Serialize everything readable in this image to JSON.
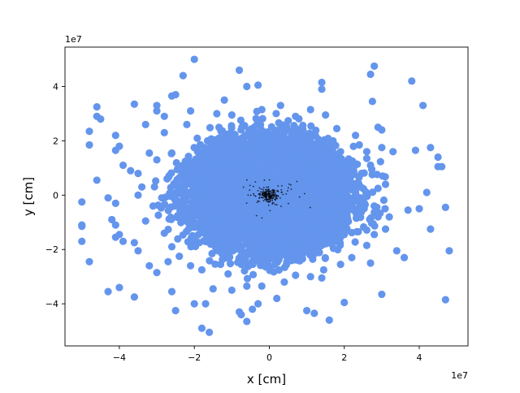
{
  "chart_data": {
    "type": "scatter",
    "title": "",
    "xlabel": "x [cm]",
    "ylabel": "y [cm]",
    "xlim": [
      -54500000.0,
      53000000.0
    ],
    "ylim": [
      -55500000.0,
      54500000.0
    ],
    "x_ticks": [
      -40000000.0,
      -20000000.0,
      0,
      20000000.0,
      40000000.0
    ],
    "y_ticks": [
      -40000000.0,
      -20000000.0,
      0,
      20000000.0,
      40000000.0
    ],
    "x_tick_labels": [
      "−4",
      "−2",
      "0",
      "2",
      "4"
    ],
    "y_tick_labels": [
      "−4",
      "−2",
      "0",
      "2",
      "4"
    ],
    "x_offset_label": "1e7",
    "y_offset_label": "1e7",
    "grid": false,
    "series": [
      {
        "marker": "circle-large",
        "color": "#6495ed",
        "points": [
          [
            -20000000.0,
            50000000.0
          ],
          [
            -8000000.0,
            46000000.0
          ],
          [
            -6000000.0,
            40000000.0
          ],
          [
            -23000000.0,
            44000000.0
          ],
          [
            -25000000.0,
            37000000.0
          ],
          [
            -26000000.0,
            36500000.0
          ],
          [
            -12000000.0,
            35000000.0
          ],
          [
            14000000.0,
            41500000.0
          ],
          [
            14000000.0,
            39000000.0
          ],
          [
            28000000.0,
            47500000.0
          ],
          [
            27000000.0,
            44500000.0
          ],
          [
            27500000.0,
            34500000.0
          ],
          [
            38000000.0,
            42000000.0
          ],
          [
            41000000.0,
            33000000.0
          ],
          [
            -3000000.0,
            40500000.0
          ],
          [
            -46000000.0,
            32500000.0
          ],
          [
            -46000000.0,
            29000000.0
          ],
          [
            -45000000.0,
            28000000.0
          ],
          [
            -36000000.0,
            33500000.0
          ],
          [
            -30000000.0,
            33000000.0
          ],
          [
            -48000000.0,
            23500000.0
          ],
          [
            -48000000.0,
            18500000.0
          ],
          [
            -41000000.0,
            16500000.0
          ],
          [
            -40000000.0,
            18000000.0
          ],
          [
            -41000000.0,
            22000000.0
          ],
          [
            -33000000.0,
            26000000.0
          ],
          [
            -30000000.0,
            31000000.0
          ],
          [
            -28000000.0,
            29000000.0
          ],
          [
            -39000000.0,
            11000000.0
          ],
          [
            -37000000.0,
            9000000.0
          ],
          [
            -46000000.0,
            5500000.0
          ],
          [
            -35000000.0,
            8000000.0
          ],
          [
            -34000000.0,
            3000000.0
          ],
          [
            -43000000.0,
            -1000000.0
          ],
          [
            -41000000.0,
            -3000000.0
          ],
          [
            -42000000.0,
            -9000000.0
          ],
          [
            -41000000.0,
            -11000000.0
          ],
          [
            -41000000.0,
            -15500000.0
          ],
          [
            -40000000.0,
            -14500000.0
          ],
          [
            -39000000.0,
            -17000000.0
          ],
          [
            -36000000.0,
            -17500000.0
          ],
          [
            -35000000.0,
            -20500000.0
          ],
          [
            -32000000.0,
            -26000000.0
          ],
          [
            -30000000.0,
            -28500000.0
          ],
          [
            -27000000.0,
            -24500000.0
          ],
          [
            -48000000.0,
            -24500000.0
          ],
          [
            -50000000.0,
            -17000000.0
          ],
          [
            -50000000.0,
            -11500000.0
          ],
          [
            -50000000.0,
            -11000000.0
          ],
          [
            -50000000.0,
            -2500000.0
          ],
          [
            -43000000.0,
            -35500000.0
          ],
          [
            -40000000.0,
            -34000000.0
          ],
          [
            -36000000.0,
            -37500000.0
          ],
          [
            -26000000.0,
            -35500000.0
          ],
          [
            -25000000.0,
            -42500000.0
          ],
          [
            -20000000.0,
            -40000000.0
          ],
          [
            -17000000.0,
            -40000000.0
          ],
          [
            -18000000.0,
            -49000000.0
          ],
          [
            -16000000.0,
            -50500000.0
          ],
          [
            -15000000.0,
            -34500000.0
          ],
          [
            -8000000.0,
            -43000000.0
          ],
          [
            -7500000.0,
            -44000000.0
          ],
          [
            -6000000.0,
            -46500000.0
          ],
          [
            -4500000.0,
            -42000000.0
          ],
          [
            -3000000.0,
            -40000000.0
          ],
          [
            2000000.0,
            -38000000.0
          ],
          [
            10000000.0,
            -42500000.0
          ],
          [
            12000000.0,
            -43500000.0
          ],
          [
            16000000.0,
            -46000000.0
          ],
          [
            20000000.0,
            -39500000.0
          ],
          [
            30000000.0,
            -36500000.0
          ],
          [
            47000000.0,
            -38500000.0
          ],
          [
            48000000.0,
            -20500000.0
          ],
          [
            36000000.0,
            -23000000.0
          ],
          [
            34000000.0,
            -20500000.0
          ],
          [
            27000000.0,
            -25000000.0
          ],
          [
            43000000.0,
            -12500000.0
          ],
          [
            37000000.0,
            -5500000.0
          ],
          [
            40000000.0,
            -5000000.0
          ],
          [
            47000000.0,
            -4500000.0
          ],
          [
            42000000.0,
            1000000.0
          ],
          [
            45000000.0,
            10500000.0
          ],
          [
            46000000.0,
            10500000.0
          ],
          [
            45000000.0,
            14000000.0
          ],
          [
            43000000.0,
            17500000.0
          ],
          [
            39000000.0,
            16500000.0
          ],
          [
            33000000.0,
            16000000.0
          ],
          [
            30000000.0,
            17500000.0
          ],
          [
            29000000.0,
            25000000.0
          ],
          [
            30000000.0,
            24000000.0
          ],
          [
            24000000.0,
            18500000.0
          ],
          [
            23000000.0,
            22000000.0
          ],
          [
            18000000.0,
            24500000.0
          ],
          [
            17000000.0,
            20000000.0
          ],
          [
            19000000.0,
            16000000.0
          ],
          [
            15000000.0,
            29500000.0
          ],
          [
            11000000.0,
            31500000.0
          ],
          [
            7000000.0,
            29000000.0
          ],
          [
            3000000.0,
            33000000.0
          ],
          [
            -2000000.0,
            31500000.0
          ],
          [
            -10000000.0,
            29500000.0
          ],
          [
            -14000000.0,
            30000000.0
          ],
          [
            -21000000.0,
            31000000.0
          ],
          [
            -22000000.0,
            26000000.0
          ],
          [
            -28000000.0,
            23000000.0
          ],
          [
            -32000000.0,
            15500000.0
          ],
          [
            -30000000.0,
            13000000.0
          ],
          [
            -26000000.0,
            15500000.0
          ],
          [
            -35000000.0,
            0.0
          ],
          [
            -31000000.0,
            -4000000.0
          ],
          [
            -33000000.0,
            -9500000.0
          ],
          [
            -28000000.0,
            -14000000.0
          ],
          [
            -26000000.0,
            -19000000.0
          ],
          [
            -24000000.0,
            -22500000.0
          ],
          [
            -21000000.0,
            -26000000.0
          ],
          [
            -18000000.0,
            -27500000.0
          ],
          [
            -13000000.0,
            -25500000.0
          ],
          [
            -11000000.0,
            -29000000.0
          ],
          [
            -6000000.0,
            -33500000.0
          ],
          [
            -2000000.0,
            -33500000.0
          ],
          [
            4000000.0,
            -32000000.0
          ],
          [
            7000000.0,
            -29500000.0
          ],
          [
            11000000.0,
            -30000000.0
          ],
          [
            14500000.0,
            -27500000.0
          ],
          [
            14000000.0,
            -30500000.0
          ],
          [
            19000000.0,
            -25500000.0
          ],
          [
            22000000.0,
            -23000000.0
          ],
          [
            26000000.0,
            -18500000.0
          ],
          [
            28000000.0,
            -14500000.0
          ],
          [
            31000000.0,
            -12500000.0
          ],
          [
            32000000.0,
            -8000000.0
          ],
          [
            29000000.0,
            -8000000.0
          ],
          [
            28000000.0,
            -4000000.0
          ],
          [
            29000000.0,
            2500000.0
          ],
          [
            31000000.0,
            4000000.0
          ],
          [
            27000000.0,
            11000000.0
          ],
          [
            26000000.0,
            13500000.0
          ],
          [
            23000000.0,
            11500000.0
          ],
          [
            26000000.0,
            16000000.0
          ],
          [
            -10000000.0,
            -35000000.0
          ]
        ]
      },
      {
        "marker": "cluster-dense",
        "color": "#6495ed",
        "clusters": [
          {
            "cx": 0.0,
            "cy": 0.0,
            "rx": 23000000.0,
            "ry": 23000000.0,
            "count": 2600,
            "seed": 11
          },
          {
            "cx": 0.0,
            "cy": 0.0,
            "rx": 29000000.0,
            "ry": 28000000.0,
            "count": 700,
            "seed": 23
          }
        ]
      },
      {
        "marker": "dot-small",
        "color": "#000000",
        "clusters": [
          {
            "cx": 0.0,
            "cy": 0.0,
            "rx": 2500000.0,
            "ry": 2500000.0,
            "count": 160,
            "seed": 5
          },
          {
            "cx": 0.0,
            "cy": 0.0,
            "rx": 7000000.0,
            "ry": 6000000.0,
            "count": 60,
            "seed": 7
          }
        ]
      }
    ]
  }
}
